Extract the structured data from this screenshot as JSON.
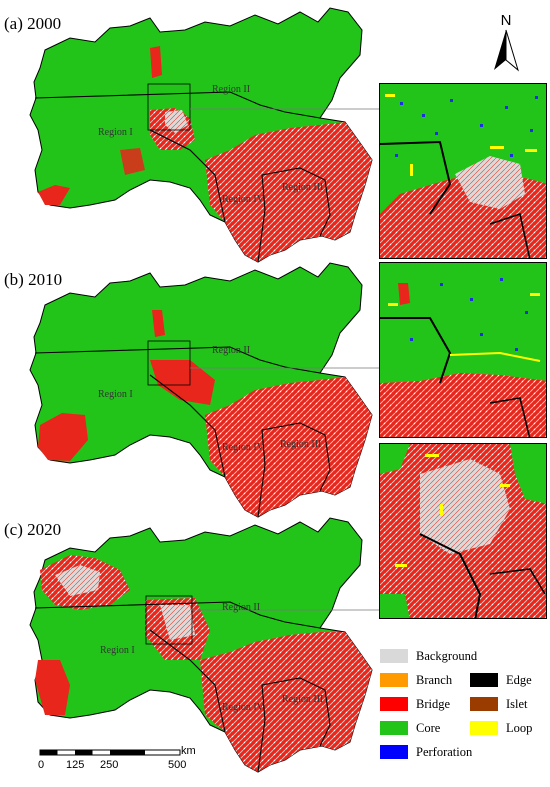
{
  "panels": [
    {
      "id": "a",
      "label": "(a) 2000"
    },
    {
      "id": "b",
      "label": "(b) 2010"
    },
    {
      "id": "c",
      "label": "(c) 2020"
    }
  ],
  "regions": [
    "Region I",
    "Region II",
    "Region III",
    "Region IV"
  ],
  "north_label": "N",
  "legend": [
    {
      "label": "Background",
      "color": "#d9d9d9"
    },
    {
      "label": "Branch",
      "color": "#ff9a00"
    },
    {
      "label": "Edge",
      "color": "#000000"
    },
    {
      "label": "Bridge",
      "color": "#ff0000"
    },
    {
      "label": "Islet",
      "color": "#9a3b00"
    },
    {
      "label": "Core",
      "color": "#22c41a"
    },
    {
      "label": "Loop",
      "color": "#ffff00"
    },
    {
      "label": "Perforation",
      "color": "#0000ff"
    }
  ],
  "scale": {
    "unit": "km",
    "ticks": [
      "0",
      "125",
      "250",
      "500"
    ]
  }
}
